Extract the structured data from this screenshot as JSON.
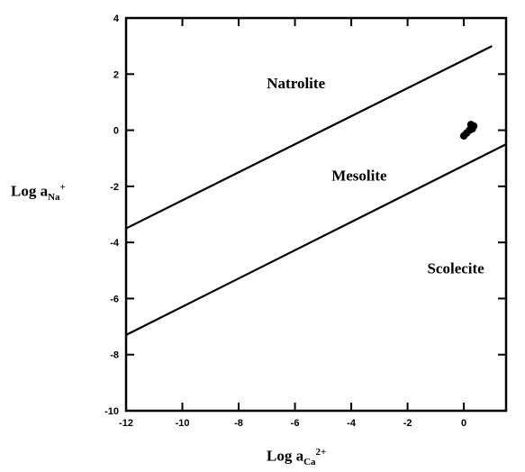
{
  "chart_data": {
    "type": "line",
    "title": "",
    "xlabel": {
      "prefix": "Log a",
      "subscript": "Ca",
      "superscript": "2+"
    },
    "ylabel": {
      "prefix": "Log a",
      "subscript": "Na",
      "superscript": "+"
    },
    "xlim": [
      -12,
      1.5
    ],
    "ylim": [
      -10,
      4
    ],
    "x_ticks": [
      -12,
      -10,
      -8,
      -6,
      -4,
      -2,
      0
    ],
    "y_ticks": [
      4,
      2,
      0,
      -2,
      -4,
      -6,
      -8,
      -10
    ],
    "x_tick_labels": [
      "-12",
      "-10",
      "-8",
      "-6",
      "-4",
      "-2",
      "0"
    ],
    "y_tick_labels": [
      "4",
      "2",
      "0",
      "-2",
      "-4",
      "-6",
      "-8",
      "-10"
    ],
    "grid": false,
    "series": [
      {
        "x": [
          -12,
          1
        ],
        "y": [
          -3.5,
          3
        ]
      },
      {
        "x": [
          -12,
          1.5
        ],
        "y": [
          -7.3,
          -0.5
        ]
      }
    ],
    "points": [
      {
        "x": 0.0,
        "y": -0.2
      },
      {
        "x": 0.1,
        "y": -0.1
      },
      {
        "x": 0.2,
        "y": 0.0
      },
      {
        "x": 0.3,
        "y": 0.05
      },
      {
        "x": 0.35,
        "y": 0.15
      },
      {
        "x": 0.25,
        "y": 0.2
      }
    ],
    "regions": [
      {
        "label": "Natrolite",
        "x": -7,
        "y": 1.5
      },
      {
        "label": "Mesolite",
        "x": -4.7,
        "y": -1.8
      },
      {
        "label": "Scolecite",
        "x": -1.3,
        "y": -5.1
      }
    ]
  }
}
